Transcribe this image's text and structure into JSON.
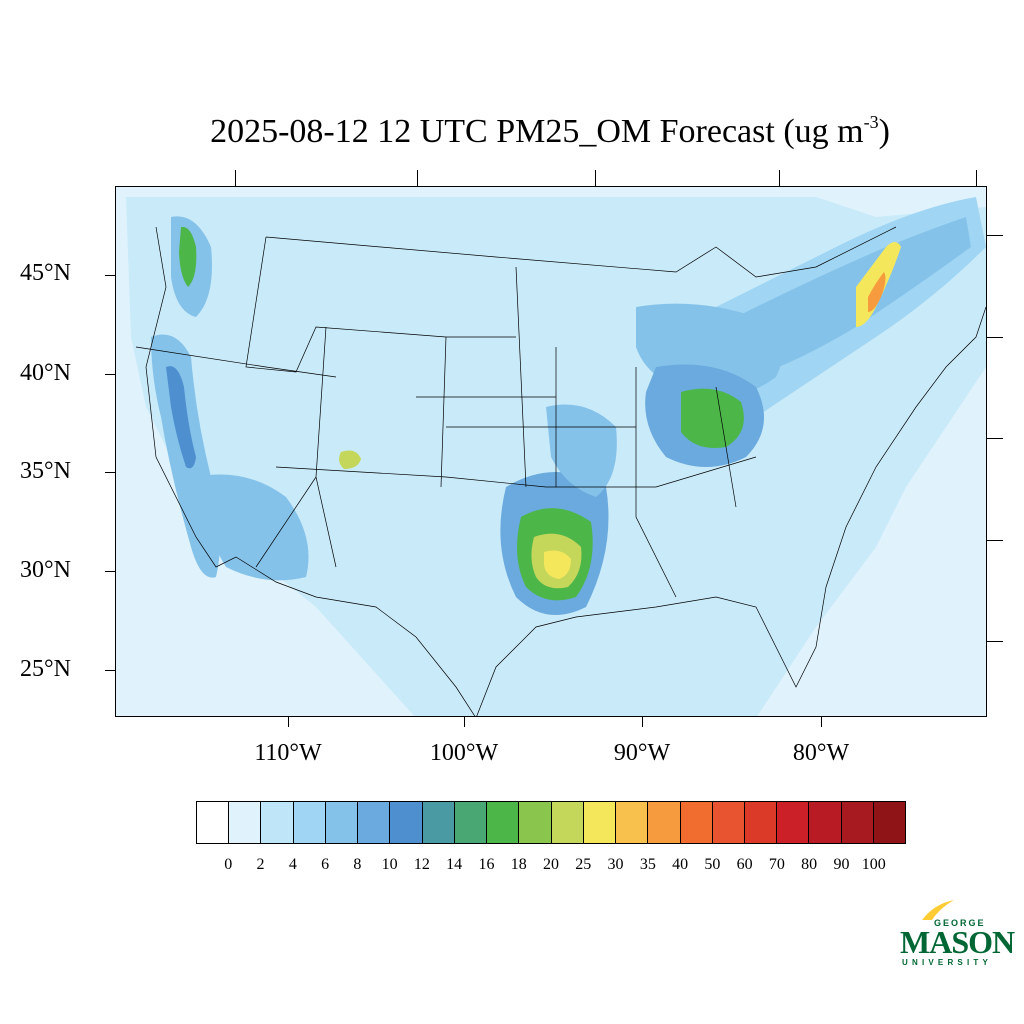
{
  "title": {
    "text": "2025-08-12 12 UTC PM25_OM Forecast (ug m",
    "superscript": "-3",
    "close": ")"
  },
  "map": {
    "background_color": "#e0f3fc",
    "lat_labels": [
      "45°N",
      "40°N",
      "35°N",
      "30°N",
      "25°N"
    ],
    "lon_labels": [
      "110°W",
      "100°W",
      "90°W",
      "80°W"
    ]
  },
  "colorbar": {
    "colors": [
      "#ffffff",
      "#e0f3fc",
      "#bfe6f8",
      "#a0d6f4",
      "#85c2ea",
      "#6aaade",
      "#4d8fcf",
      "#4a9aa4",
      "#49a774",
      "#4cb649",
      "#8ac64e",
      "#c4d75a",
      "#f4e75c",
      "#f8c04c",
      "#f69c3e",
      "#f06d2f",
      "#e85330",
      "#dc3a28",
      "#cc2029",
      "#b81b24",
      "#a61a20",
      "#8e1418"
    ],
    "labels": [
      "0",
      "2",
      "4",
      "6",
      "8",
      "10",
      "12",
      "14",
      "16",
      "18",
      "20",
      "25",
      "30",
      "35",
      "40",
      "50",
      "60",
      "70",
      "80",
      "90",
      "100"
    ]
  },
  "logo": {
    "top": "GEORGE",
    "main": "MASON",
    "bottom": "UNIVERSITY"
  }
}
